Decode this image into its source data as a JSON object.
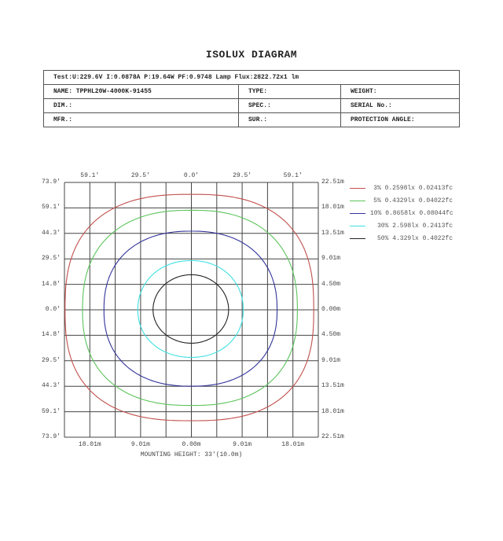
{
  "title": "ISOLUX DIAGRAM",
  "info": {
    "test_line": "Test:U:229.6V I:0.0878A P:19.64W PF:0.9748  Lamp Flux:2822.72x1 lm",
    "rows": [
      [
        "NAME: TPPHL20W-4000K-91455",
        "TYPE:",
        "WEIGHT:"
      ],
      [
        "DIM.:",
        "SPEC.:",
        "SERIAL No.:"
      ],
      [
        "MFR.:",
        "SUR.:",
        "PROTECTION ANGLE:"
      ]
    ]
  },
  "chart_data": {
    "type": "isolux-contour",
    "grid": true,
    "grid_divisions": 10,
    "xlim_m": [
      -22.51,
      22.51
    ],
    "ylim_m": [
      -22.51,
      22.51
    ],
    "top_tick_labels": [
      "59.1'",
      "29.5'",
      "0.0'",
      "29.5'",
      "59.1'"
    ],
    "left_tick_labels": [
      "73.9'",
      "59.1'",
      "44.3'",
      "29.5'",
      "14.8'",
      "0.0'",
      "14.8'",
      "29.5'",
      "44.3'",
      "59.1'",
      "73.9'"
    ],
    "right_tick_labels": [
      "22.51m",
      "18.01m",
      "13.51m",
      "9.01m",
      "4.50m",
      "0.00m",
      "4.50m",
      "9.01m",
      "13.51m",
      "18.01m",
      "22.51m"
    ],
    "bottom_tick_labels": [
      "18.01m",
      "9.01m",
      "0.00m",
      "9.01m",
      "18.01m"
    ],
    "xlabel": "MOUNTING HEIGHT: 33'(10.0m)",
    "legend_position": "right",
    "series": [
      {
        "name": "3% 0.2598lx 0.02413fc",
        "color": "#c0504d",
        "extent_m": {
          "left": 22.4,
          "right": 21.7,
          "top": 20.4,
          "bottom": 19.6
        },
        "exponent": 2.6
      },
      {
        "name": "5% 0.4329lx 0.04022fc",
        "color": "#5cc45c",
        "extent_m": {
          "left": 19.3,
          "right": 18.8,
          "top": 17.6,
          "bottom": 16.9
        },
        "exponent": 2.4
      },
      {
        "name": "10% 0.8658lx 0.08044fc",
        "color": "#33339a",
        "extent_m": {
          "left": 15.5,
          "right": 15.2,
          "top": 13.9,
          "bottom": 13.5
        },
        "exponent": 2.3
      },
      {
        "name": "30% 2.598lx 0.2413fc",
        "color": "#40e0e0",
        "extent_m": {
          "left": 9.5,
          "right": 9.2,
          "top": 8.7,
          "bottom": 8.4
        },
        "exponent": 2.1
      },
      {
        "name": "50% 4.329lx 0.4022fc",
        "color": "#222222",
        "extent_m": {
          "left": 6.8,
          "right": 6.6,
          "top": 6.2,
          "bottom": 5.9
        },
        "exponent": 2.0
      }
    ]
  }
}
